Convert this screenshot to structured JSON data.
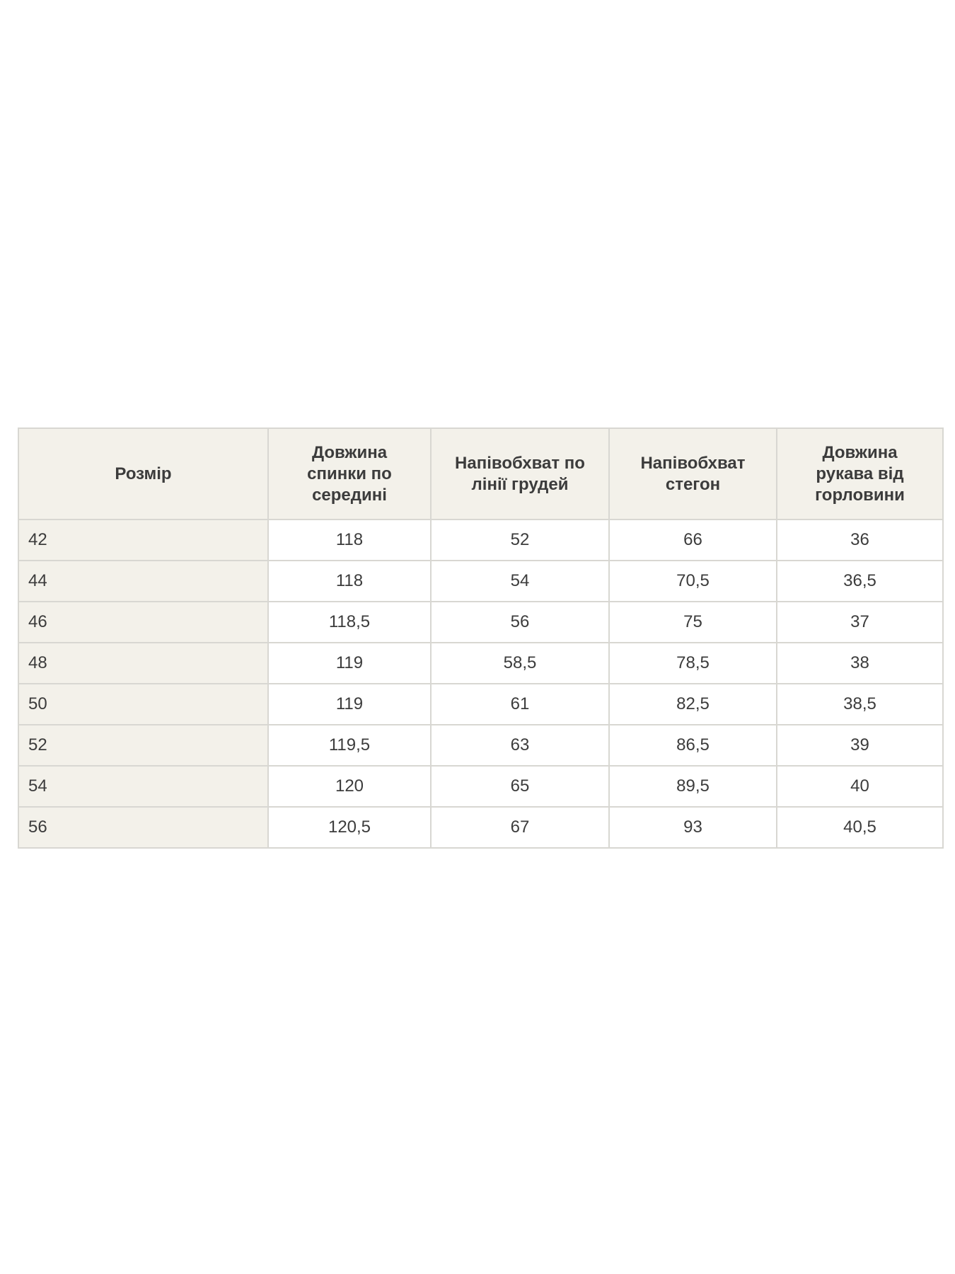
{
  "colors": {
    "page_bg": "#ffffff",
    "header_bg": "#f3f1ea",
    "size_column_bg": "#f3f1ea",
    "cell_bg": "#ffffff",
    "border": "#d8d7d2",
    "text": "#3c3c3c"
  },
  "size_table": {
    "headers": [
      "Розмір",
      "Довжина спинки по середині",
      "Напівобхват по лінії грудей",
      "Напівобхват стегон",
      "Довжина рукава від горловини"
    ],
    "rows": [
      [
        "42",
        "118",
        "52",
        "66",
        "36"
      ],
      [
        "44",
        "118",
        "54",
        "70,5",
        "36,5"
      ],
      [
        "46",
        "118,5",
        "56",
        "75",
        "37"
      ],
      [
        "48",
        "119",
        "58,5",
        "78,5",
        "38"
      ],
      [
        "50",
        "119",
        "61",
        "82,5",
        "38,5"
      ],
      [
        "52",
        "119,5",
        "63",
        "86,5",
        "39"
      ],
      [
        "54",
        "120",
        "65",
        "89,5",
        "40"
      ],
      [
        "56",
        "120,5",
        "67",
        "93",
        "40,5"
      ]
    ]
  },
  "chart_data": {
    "type": "table",
    "title": "",
    "columns": [
      "Розмір",
      "Довжина спинки по середині",
      "Напівобхват по лінії грудей",
      "Напівобхват стегон",
      "Довжина рукава від горловини"
    ],
    "rows": [
      [
        "42",
        "118",
        "52",
        "66",
        "36"
      ],
      [
        "44",
        "118",
        "54",
        "70,5",
        "36,5"
      ],
      [
        "46",
        "118,5",
        "56",
        "75",
        "37"
      ],
      [
        "48",
        "119",
        "58,5",
        "78,5",
        "38"
      ],
      [
        "50",
        "119",
        "61",
        "82,5",
        "38,5"
      ],
      [
        "52",
        "119,5",
        "63",
        "86,5",
        "39"
      ],
      [
        "54",
        "120",
        "65",
        "89,5",
        "40"
      ],
      [
        "56",
        "120,5",
        "67",
        "93",
        "40,5"
      ]
    ]
  }
}
